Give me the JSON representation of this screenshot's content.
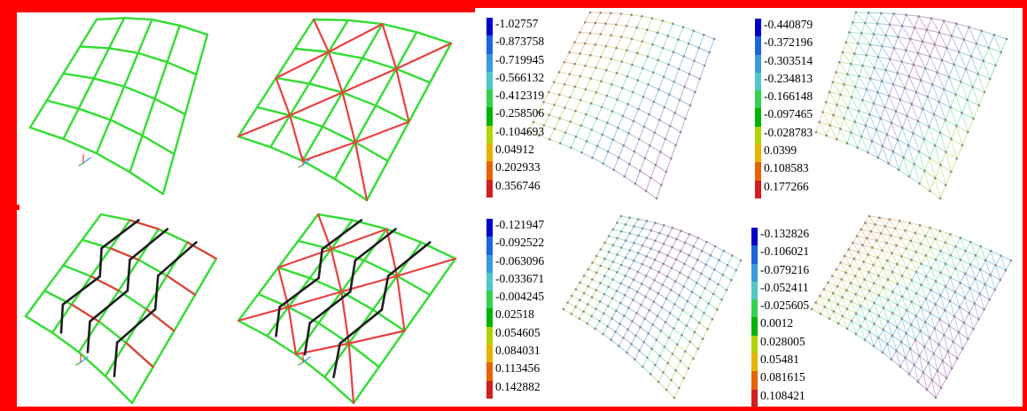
{
  "colors": {
    "mesh_green": "#33dd33",
    "diagonal_red": "#e84040",
    "brace_black": "#1e1e1e",
    "frame_red": "#ff0000",
    "scale": [
      "#0000c8",
      "#1e64dc",
      "#3c9bdc",
      "#50c8c8",
      "#32d250",
      "#00b400",
      "#b4d200",
      "#e6b400",
      "#e66400",
      "#d21e1e"
    ]
  },
  "legends": [
    {
      "id": "legend-top-left",
      "values": [
        "-1.02757",
        "-0.873758",
        "-0.719945",
        "-0.566132",
        "-0.412319",
        "-0.258506",
        "-0.104693",
        "0.04912",
        "0.202933",
        "0.356746"
      ]
    },
    {
      "id": "legend-top-right",
      "values": [
        "-0.440879",
        "-0.372196",
        "-0.303514",
        "-0.234813",
        "-0.166148",
        "-0.097465",
        "-0.028783",
        "0.0399",
        "0.108583",
        "0.177266"
      ]
    },
    {
      "id": "legend-bottom-left",
      "values": [
        "-0.121947",
        "-0.092522",
        "-0.063096",
        "-0.033671",
        "-0.004245",
        "0.02518",
        "0.054605",
        "0.084031",
        "0.113456",
        "0.142882"
      ]
    },
    {
      "id": "legend-bottom-right",
      "values": [
        "-0.132826",
        "-0.106021",
        "-0.079216",
        "-0.052411",
        "-0.025605",
        "0.0012",
        "0.028005",
        "0.05481",
        "0.081615",
        "0.108421"
      ]
    }
  ]
}
